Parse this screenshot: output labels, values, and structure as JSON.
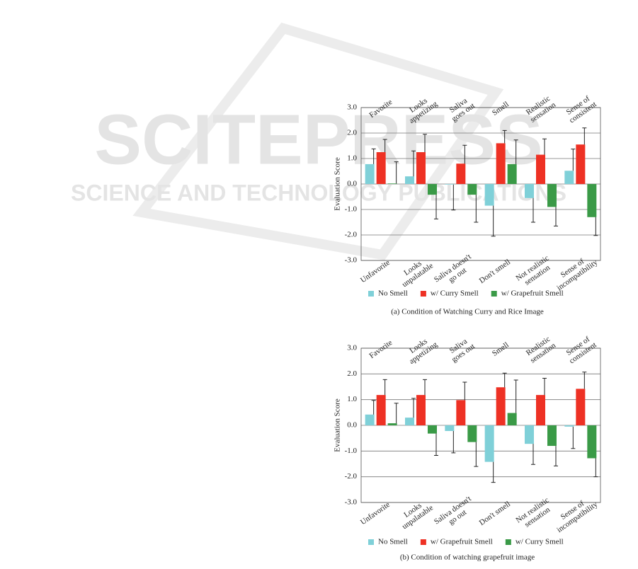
{
  "watermark": {
    "title": "SCITEPRESS",
    "subtitle": "SCIENCE AND TECHNOLOGY PUBLICATIONS"
  },
  "chart_data": [
    {
      "type": "bar",
      "y_label": "Evaluation Score",
      "caption": "(a)  Condition of Watching Curry and Rice Image",
      "categories": [
        "Favorite",
        "Looks\nappetizing",
        "Saliva\ngoes out",
        "Smell",
        "Realistic\nsensation",
        "Sense of\nconsistent"
      ],
      "negative_labels": [
        "Unfavorite",
        "Looks\nunpalatable",
        "Saliva  doesn't\ngo out",
        "Don't smell",
        "Not realistic\nsensation",
        "Sense of\nincompatibility"
      ],
      "ylim": [
        -3,
        3
      ],
      "yticks": [
        {
          "value": 3,
          "label": "3.0"
        },
        {
          "value": 2,
          "label": "2.0"
        },
        {
          "value": 1,
          "label": "1.0"
        },
        {
          "value": 0,
          "label": "0.0"
        },
        {
          "value": -1,
          "label": "-1.0"
        },
        {
          "value": -2,
          "label": "-2.0"
        },
        {
          "value": -3,
          "label": "-3.0"
        }
      ],
      "grid": true,
      "series": [
        {
          "name": "No Smell",
          "color": "#7fd0d8",
          "values": [
            0.78,
            0.3,
            -0.02,
            -0.85,
            -0.55,
            0.52
          ],
          "errors": [
            0.6,
            1.0,
            1.0,
            1.2,
            0.95,
            0.85
          ]
        },
        {
          "name": "w/ Curry Smell",
          "color": "#ee3124",
          "values": [
            1.25,
            1.25,
            0.8,
            1.6,
            1.15,
            1.55
          ],
          "errors": [
            0.5,
            0.7,
            0.72,
            0.5,
            0.62,
            0.65
          ]
        },
        {
          "name": "w/ Grapefruit Smell",
          "color": "#3a9a47",
          "values": [
            0.02,
            -0.42,
            -0.42,
            0.78,
            -0.9,
            -1.3
          ],
          "errors": [
            0.85,
            0.95,
            1.08,
            0.95,
            0.75,
            0.72
          ]
        }
      ]
    },
    {
      "type": "bar",
      "y_label": "Evaluation Score",
      "caption": "(b)  Condition of watching grapefruit image",
      "categories": [
        "Favorite",
        "Looks\nappetizing",
        "Saliva\ngoes out",
        "Smell",
        "Realistic\nsensation",
        "Sense of\nconsistent"
      ],
      "negative_labels": [
        "Unfavorite",
        "Looks\nunpalatable",
        "Saliva  doesn't\ngo out",
        "Don't smell",
        "Not realistic\nsensation",
        "Sense of\nincompatibility"
      ],
      "ylim": [
        -3,
        3
      ],
      "yticks": [
        {
          "value": 3,
          "label": "3.0"
        },
        {
          "value": 2,
          "label": "2.0"
        },
        {
          "value": 1,
          "label": "1.0"
        },
        {
          "value": 0,
          "label": "0.0"
        },
        {
          "value": -1,
          "label": "-1.0"
        },
        {
          "value": -2,
          "label": "-2.0"
        },
        {
          "value": -3,
          "label": "-3.0"
        }
      ],
      "grid": true,
      "series": [
        {
          "name": "No Smell",
          "color": "#7fd0d8",
          "values": [
            0.42,
            0.3,
            -0.22,
            -1.42,
            -0.72,
            -0.05
          ],
          "errors": [
            0.55,
            0.75,
            0.85,
            0.8,
            0.8,
            0.85
          ]
        },
        {
          "name": "w/ Grapefruit Smell",
          "color": "#ee3124",
          "values": [
            1.18,
            1.18,
            0.98,
            1.48,
            1.18,
            1.42
          ],
          "errors": [
            0.6,
            0.6,
            0.7,
            0.55,
            0.65,
            0.65
          ]
        },
        {
          "name": "w/ Curry Smell",
          "color": "#3a9a47",
          "values": [
            0.08,
            -0.32,
            -0.65,
            0.48,
            -0.8,
            -1.28
          ],
          "errors": [
            0.78,
            0.85,
            0.95,
            1.28,
            0.78,
            0.72
          ]
        }
      ]
    }
  ]
}
